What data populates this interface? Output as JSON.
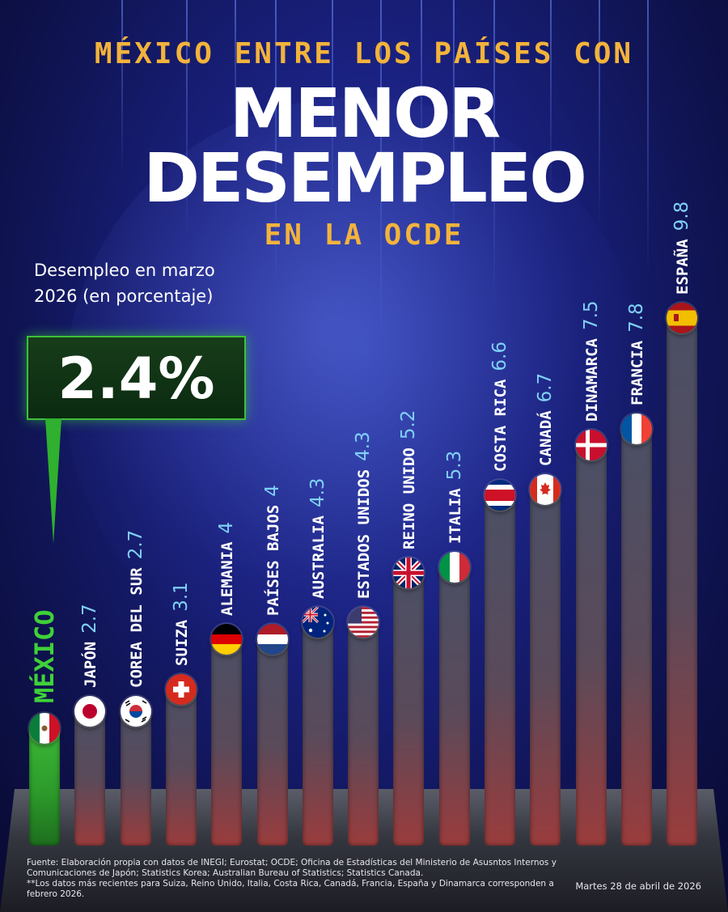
{
  "header": {
    "title_top": "MÉXICO ENTRE LOS PAÍSES CON",
    "title_line1": "MENOR",
    "title_line2": "DESEMPLEO",
    "title_sub": "EN LA OCDE"
  },
  "subtitle": "Desempleo en marzo 2026 (en porcentaje)",
  "highlight": {
    "value": "2.4%"
  },
  "chart_data": {
    "type": "bar",
    "title": "MÉXICO ENTRE LOS PAÍSES CON MENOR DESEMPLEO EN LA OCDE",
    "subtitle": "Desempleo en marzo 2026 (en porcentaje)",
    "categories": [
      "MÉXICO",
      "JAPÓN",
      "COREA DEL SUR",
      "SUIZA",
      "ALEMANIA",
      "PAÍSES BAJOS",
      "AUSTRALIA",
      "ESTADOS UNIDOS",
      "REINO UNIDO",
      "ITALIA",
      "COSTA RICA",
      "CANADÁ",
      "DINAMARCA",
      "FRANCIA",
      "ESPAÑA"
    ],
    "values": [
      2.4,
      2.7,
      2.7,
      3.1,
      4,
      4,
      4.3,
      4.3,
      5.2,
      5.3,
      6.6,
      6.7,
      7.5,
      7.8,
      9.8
    ],
    "value_labels": [
      "",
      "2.7",
      "2.7",
      "3.1",
      "4",
      "4",
      "4.3",
      "4.3",
      "5.2",
      "5.3",
      "6.6",
      "6.7",
      "7.5",
      "7.8",
      "9.8"
    ],
    "flags": [
      "mexico-flag-icon",
      "japan-flag-icon",
      "south-korea-flag-icon",
      "switzerland-flag-icon",
      "germany-flag-icon",
      "netherlands-flag-icon",
      "australia-flag-icon",
      "usa-flag-icon",
      "uk-flag-icon",
      "italy-flag-icon",
      "costa-rica-flag-icon",
      "canada-flag-icon",
      "denmark-flag-icon",
      "france-flag-icon",
      "spain-flag-icon"
    ],
    "ylim": [
      0,
      10
    ],
    "grid": false,
    "colors": {
      "highlight": "#3fbf3a",
      "bar_top": "#4a5066",
      "bar_bottom": "#9a3c3c",
      "value_text": "#7fd0f5",
      "title_accent": "#f3b33b"
    }
  },
  "footer": {
    "source": "Fuente: Elaboración propia con datos de INEGI; Eurostat; OCDE; Oficina de Estadísticas del Ministerio de Asusntos Internos y Comunicaciones de Japón; Statistics Korea; Australian Bureau of Statistics; Statistics Canada.",
    "note": "**Los datos más recientes para Suiza, Reino Unido, Italia, Costa Rica, Canadá, Francia, España y Dinamarca corresponden a febrero 2026.",
    "date": "Martes 28 de abril de 2026"
  }
}
